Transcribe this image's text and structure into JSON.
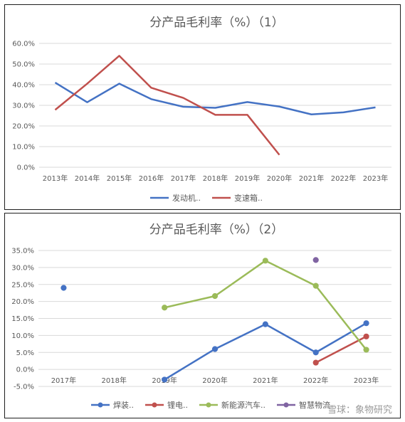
{
  "chart_data": [
    {
      "type": "line",
      "title": "分产品毛利率（%）（1）",
      "xlabel": "",
      "ylabel": "",
      "categories": [
        "2013年",
        "2014年",
        "2015年",
        "2016年",
        "2017年",
        "2018年",
        "2019年",
        "2020年",
        "2021年",
        "2022年",
        "2023年"
      ],
      "y_ticks": [
        "0.0%",
        "10.0%",
        "20.0%",
        "30.0%",
        "40.0%",
        "50.0%",
        "60.0%"
      ],
      "ylim": [
        0,
        60
      ],
      "grid": true,
      "legend_position": "bottom",
      "series": [
        {
          "name": "发动机..",
          "color": "#4472c4",
          "markers": false,
          "values": [
            41.0,
            31.5,
            40.5,
            33.0,
            29.3,
            28.8,
            31.6,
            29.4,
            25.6,
            26.6,
            29.0
          ]
        },
        {
          "name": "变速箱..",
          "color": "#c0504d",
          "markers": false,
          "values": [
            27.8,
            40.5,
            54.0,
            38.5,
            33.6,
            25.4,
            25.4,
            6.0,
            null,
            null,
            null
          ]
        }
      ]
    },
    {
      "type": "line",
      "title": "分产品毛利率（%）（2）",
      "xlabel": "",
      "ylabel": "",
      "categories": [
        "2017年",
        "2018年",
        "2019年",
        "2020年",
        "2021年",
        "2022年",
        "2023年"
      ],
      "y_ticks": [
        "-5.0%",
        "0.0%",
        "5.0%",
        "10.0%",
        "15.0%",
        "20.0%",
        "25.0%",
        "30.0%",
        "35.0%"
      ],
      "ylim": [
        -5,
        35
      ],
      "grid": true,
      "legend_position": "bottom",
      "series": [
        {
          "name": "焊装..",
          "color": "#4472c4",
          "markers": true,
          "values": [
            24.0,
            null,
            -3.0,
            6.0,
            13.3,
            5.0,
            13.6
          ]
        },
        {
          "name": "锂电..",
          "color": "#c0504d",
          "markers": true,
          "values": [
            null,
            null,
            null,
            null,
            null,
            2.0,
            9.7
          ]
        },
        {
          "name": "新能源汽车..",
          "color": "#9bbb59",
          "markers": true,
          "values": [
            null,
            null,
            18.2,
            21.6,
            32.0,
            24.6,
            5.8
          ]
        },
        {
          "name": "智慧物流",
          "color": "#8064a2",
          "markers": true,
          "values": [
            null,
            null,
            null,
            null,
            null,
            32.2,
            null
          ]
        }
      ]
    }
  ],
  "watermark": "雪球：象物研究"
}
